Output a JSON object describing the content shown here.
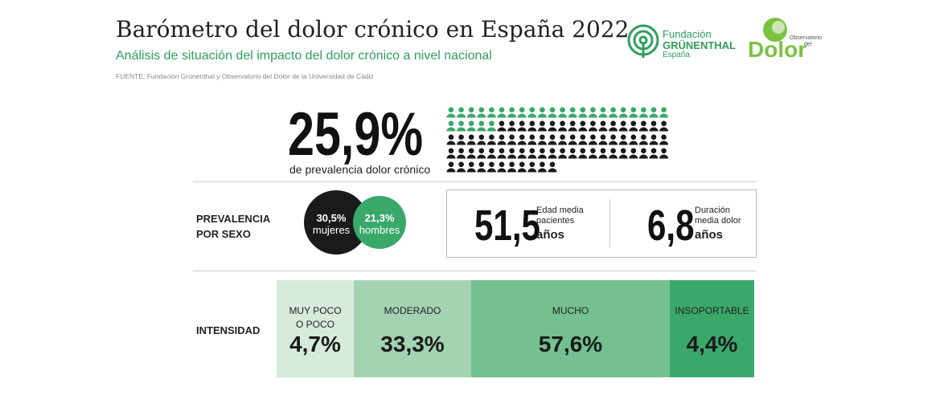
{
  "header": {
    "title": "Barómetro del dolor crónico en España 2022",
    "subtitle": "Análisis de situación del impacto del dolor crónico a nivel nacional",
    "source": "FUENTE: Fundación Grünenthal y Observatorio del Dolor de la Universidad de Cádiz"
  },
  "logos": {
    "grunenthal": [
      "Fundación",
      "GRÜNENTHAL",
      "España"
    ],
    "observatorio": [
      "Observatorio",
      "del",
      "Dolor"
    ]
  },
  "prevalence": {
    "value": "25,9%",
    "label": "de prevalencia dolor crónico"
  },
  "sex": {
    "label": [
      "PREVALENCIA",
      "POR SEXO"
    ],
    "women": {
      "value": "30,5%",
      "label": "mujeres"
    },
    "men": {
      "value": "21,3%",
      "label": "hombres"
    }
  },
  "stats": [
    {
      "value": "51,5",
      "label": [
        "Edad media",
        "pacientes"
      ],
      "unit": "años"
    },
    {
      "value": "6,8",
      "label": [
        "Duración",
        "media dolor"
      ],
      "unit": "años"
    }
  ],
  "intensity": {
    "label": "INTENSIDAD",
    "segments": [
      {
        "label": [
          "MUY POCO",
          "O POCO"
        ],
        "value": "4,7%"
      },
      {
        "label": [
          "MODERADO"
        ],
        "value": "33,3%"
      },
      {
        "label": [
          "MUCHO"
        ],
        "value": "57,6%"
      },
      {
        "label": [
          "INSOPORTABLE"
        ],
        "value": "4,4%"
      }
    ]
  }
}
